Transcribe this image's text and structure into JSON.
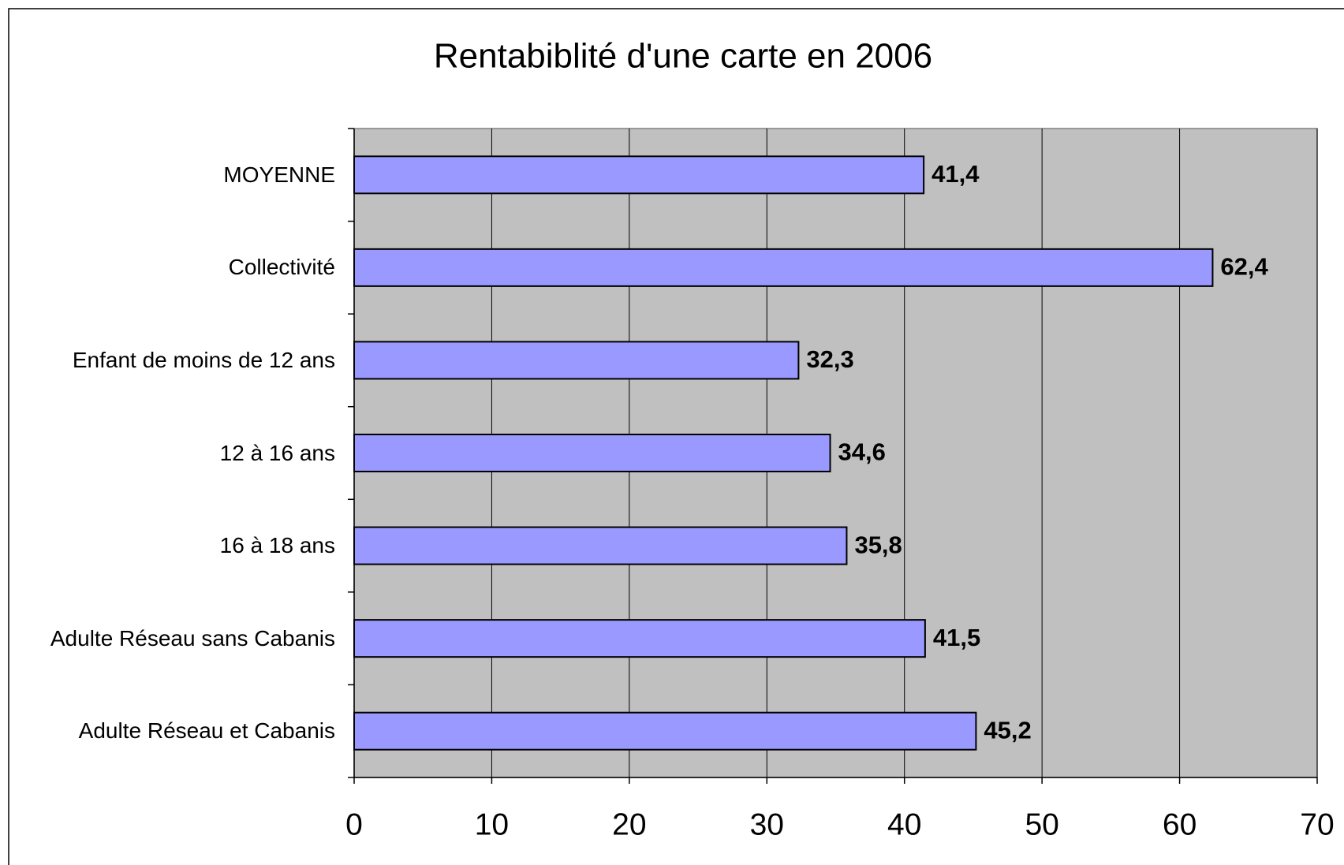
{
  "chart_data": {
    "type": "bar",
    "orientation": "horizontal",
    "title": "Rentabiblité d'une carte en 2006",
    "categories": [
      "MOYENNE",
      "Collectivité",
      "Enfant de moins de 12 ans",
      "12 à 16 ans",
      "16 à 18 ans",
      "Adulte Réseau sans Cabanis",
      "Adulte Réseau et Cabanis"
    ],
    "values": [
      41.4,
      62.4,
      32.3,
      34.6,
      35.8,
      41.5,
      45.2
    ],
    "value_labels": [
      "41,4",
      "62,4",
      "32,3",
      "34,6",
      "35,8",
      "41,5",
      "45,2"
    ],
    "color": "#9999ff",
    "xlim": [
      0,
      70
    ],
    "xticks": [
      0,
      10,
      20,
      30,
      40,
      50,
      60,
      70
    ],
    "grid": true
  }
}
